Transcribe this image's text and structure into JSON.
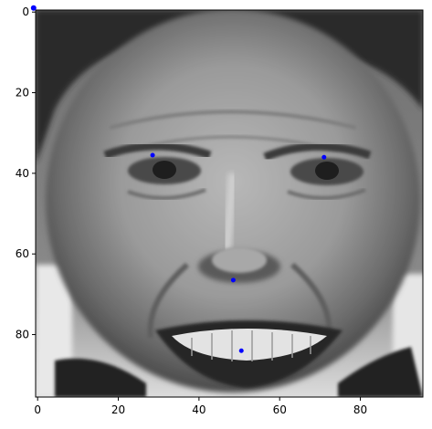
{
  "chart_data": {
    "type": "scatter",
    "title": "",
    "xlabel": "",
    "ylabel": "",
    "background_image": "grayscale-face-photo",
    "xlim": [
      -0.5,
      95.5
    ],
    "ylim": [
      95.5,
      -0.5
    ],
    "y_inverted": true,
    "x_ticks": [
      0,
      20,
      40,
      60,
      80
    ],
    "y_ticks": [
      0,
      20,
      40,
      60,
      80
    ],
    "x_tick_labels": [
      "0",
      "20",
      "40",
      "60",
      "80"
    ],
    "y_tick_labels": [
      "0",
      "20",
      "40",
      "60",
      "80"
    ],
    "grid": false,
    "marker_color": "#0000ff",
    "points": [
      {
        "x": -1,
        "y": -1
      },
      {
        "x": 28.5,
        "y": 35.5
      },
      {
        "x": 71,
        "y": 36
      },
      {
        "x": 48.5,
        "y": 66.5
      },
      {
        "x": 50.5,
        "y": 84
      }
    ]
  }
}
